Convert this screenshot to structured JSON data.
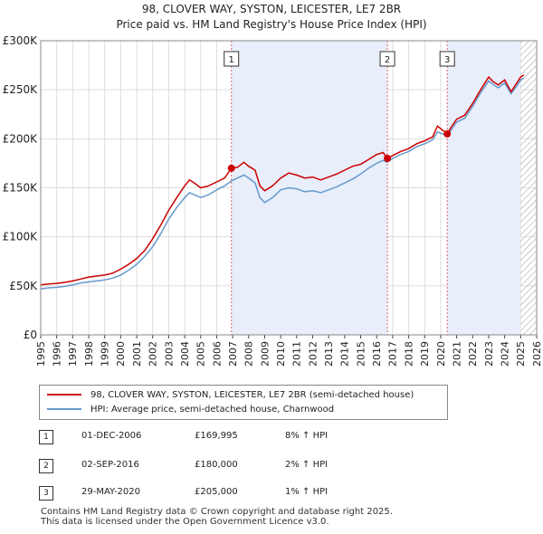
{
  "title_line1": "98, CLOVER WAY, SYSTON, LEICESTER, LE7 2BR",
  "title_line2": "Price paid vs. HM Land Registry's House Price Index (HPI)",
  "colors": {
    "property": "#cc0000",
    "hpi": "#6699cc",
    "shade": "#e8eefa",
    "grid": "#dddddd",
    "vline": "#dd6666"
  },
  "chart_data": {
    "type": "line",
    "title": "Price paid vs. HM Land Registry's House Price Index (HPI)",
    "xlim": [
      1995,
      2026
    ],
    "ylim": [
      0,
      300000
    ],
    "x_ticks": [
      "1995",
      "1996",
      "1997",
      "1998",
      "1999",
      "2000",
      "2001",
      "2002",
      "2003",
      "2004",
      "2005",
      "2006",
      "2007",
      "2008",
      "2009",
      "2010",
      "2011",
      "2012",
      "2013",
      "2014",
      "2015",
      "2016",
      "2017",
      "2018",
      "2019",
      "2020",
      "2021",
      "2022",
      "2023",
      "2024",
      "2025",
      "2026"
    ],
    "y_ticks": [
      {
        "value": 0,
        "label": "£0"
      },
      {
        "value": 50000,
        "label": "£50K"
      },
      {
        "value": 100000,
        "label": "£100K"
      },
      {
        "value": 150000,
        "label": "£150K"
      },
      {
        "value": 200000,
        "label": "£200K"
      },
      {
        "value": 250000,
        "label": "£250K"
      },
      {
        "value": 300000,
        "label": "£300K"
      }
    ],
    "shaded_ranges": [
      [
        2006.92,
        2016.67
      ],
      [
        2020.41,
        2025.0
      ]
    ],
    "hatched_range": [
      2025.0,
      2026.0
    ],
    "series": [
      {
        "name": "98, CLOVER WAY, SYSTON, LEICESTER, LE7 2BR (semi-detached house)",
        "color": "#cc0000",
        "points": [
          [
            1995.0,
            51000
          ],
          [
            1995.5,
            52000
          ],
          [
            1996.0,
            52500
          ],
          [
            1996.5,
            53500
          ],
          [
            1997.0,
            55000
          ],
          [
            1997.5,
            57000
          ],
          [
            1998.0,
            59000
          ],
          [
            1998.5,
            60000
          ],
          [
            1999.0,
            61000
          ],
          [
            1999.5,
            63000
          ],
          [
            2000.0,
            67000
          ],
          [
            2000.5,
            72000
          ],
          [
            2001.0,
            78000
          ],
          [
            2001.5,
            86000
          ],
          [
            2002.0,
            98000
          ],
          [
            2002.5,
            112000
          ],
          [
            2003.0,
            127000
          ],
          [
            2003.5,
            140000
          ],
          [
            2004.0,
            152000
          ],
          [
            2004.3,
            158000
          ],
          [
            2004.6,
            155000
          ],
          [
            2005.0,
            150000
          ],
          [
            2005.5,
            152000
          ],
          [
            2006.0,
            156000
          ],
          [
            2006.5,
            160000
          ],
          [
            2006.92,
            169995
          ],
          [
            2007.3,
            171000
          ],
          [
            2007.7,
            176000
          ],
          [
            2008.0,
            172000
          ],
          [
            2008.4,
            168000
          ],
          [
            2008.7,
            152000
          ],
          [
            2009.0,
            147000
          ],
          [
            2009.5,
            152000
          ],
          [
            2010.0,
            160000
          ],
          [
            2010.5,
            165000
          ],
          [
            2011.0,
            163000
          ],
          [
            2011.5,
            160000
          ],
          [
            2012.0,
            161000
          ],
          [
            2012.5,
            158000
          ],
          [
            2013.0,
            161000
          ],
          [
            2013.5,
            164000
          ],
          [
            2014.0,
            168000
          ],
          [
            2014.5,
            172000
          ],
          [
            2015.0,
            174000
          ],
          [
            2015.5,
            179000
          ],
          [
            2016.0,
            184000
          ],
          [
            2016.4,
            186000
          ],
          [
            2016.67,
            180000
          ],
          [
            2017.0,
            183000
          ],
          [
            2017.5,
            187000
          ],
          [
            2018.0,
            190000
          ],
          [
            2018.5,
            195000
          ],
          [
            2019.0,
            198000
          ],
          [
            2019.5,
            202000
          ],
          [
            2019.8,
            213000
          ],
          [
            2020.1,
            209000
          ],
          [
            2020.41,
            205000
          ],
          [
            2020.7,
            213000
          ],
          [
            2021.0,
            220000
          ],
          [
            2021.5,
            224000
          ],
          [
            2022.0,
            236000
          ],
          [
            2022.5,
            250000
          ],
          [
            2023.0,
            263000
          ],
          [
            2023.3,
            258000
          ],
          [
            2023.6,
            255000
          ],
          [
            2024.0,
            260000
          ],
          [
            2024.4,
            248000
          ],
          [
            2024.8,
            258000
          ],
          [
            2025.0,
            263000
          ],
          [
            2025.2,
            265000
          ]
        ]
      },
      {
        "name": "HPI: Average price, semi-detached house, Charnwood",
        "color": "#6699cc",
        "points": [
          [
            1995.0,
            47000
          ],
          [
            1995.5,
            48000
          ],
          [
            1996.0,
            48500
          ],
          [
            1996.5,
            49500
          ],
          [
            1997.0,
            51000
          ],
          [
            1997.5,
            53000
          ],
          [
            1998.0,
            54000
          ],
          [
            1998.5,
            55000
          ],
          [
            1999.0,
            56000
          ],
          [
            1999.5,
            58000
          ],
          [
            2000.0,
            61000
          ],
          [
            2000.5,
            66000
          ],
          [
            2001.0,
            72000
          ],
          [
            2001.5,
            80000
          ],
          [
            2002.0,
            90000
          ],
          [
            2002.5,
            103000
          ],
          [
            2003.0,
            118000
          ],
          [
            2003.5,
            130000
          ],
          [
            2004.0,
            140000
          ],
          [
            2004.3,
            145000
          ],
          [
            2004.6,
            143000
          ],
          [
            2005.0,
            140000
          ],
          [
            2005.5,
            143000
          ],
          [
            2006.0,
            148000
          ],
          [
            2006.5,
            152000
          ],
          [
            2006.92,
            157000
          ],
          [
            2007.3,
            160000
          ],
          [
            2007.7,
            163000
          ],
          [
            2008.0,
            160000
          ],
          [
            2008.4,
            155000
          ],
          [
            2008.7,
            140000
          ],
          [
            2009.0,
            135000
          ],
          [
            2009.5,
            140000
          ],
          [
            2010.0,
            148000
          ],
          [
            2010.5,
            150000
          ],
          [
            2011.0,
            149000
          ],
          [
            2011.5,
            146000
          ],
          [
            2012.0,
            147000
          ],
          [
            2012.5,
            145000
          ],
          [
            2013.0,
            148000
          ],
          [
            2013.5,
            151000
          ],
          [
            2014.0,
            155000
          ],
          [
            2014.5,
            159000
          ],
          [
            2015.0,
            164000
          ],
          [
            2015.5,
            170000
          ],
          [
            2016.0,
            175000
          ],
          [
            2016.4,
            178000
          ],
          [
            2016.67,
            176000
          ],
          [
            2017.0,
            180000
          ],
          [
            2017.5,
            184000
          ],
          [
            2018.0,
            187000
          ],
          [
            2018.5,
            192000
          ],
          [
            2019.0,
            195000
          ],
          [
            2019.5,
            199000
          ],
          [
            2019.8,
            207000
          ],
          [
            2020.1,
            205000
          ],
          [
            2020.41,
            203000
          ],
          [
            2020.7,
            210000
          ],
          [
            2021.0,
            217000
          ],
          [
            2021.5,
            221000
          ],
          [
            2022.0,
            233000
          ],
          [
            2022.5,
            247000
          ],
          [
            2023.0,
            259000
          ],
          [
            2023.3,
            255000
          ],
          [
            2023.6,
            252000
          ],
          [
            2024.0,
            257000
          ],
          [
            2024.4,
            246000
          ],
          [
            2024.8,
            255000
          ],
          [
            2025.0,
            260000
          ],
          [
            2025.2,
            262000
          ]
        ]
      }
    ],
    "sales": [
      {
        "id": "1",
        "x": 2006.92,
        "y": 169995
      },
      {
        "id": "2",
        "x": 2016.67,
        "y": 180000
      },
      {
        "id": "3",
        "x": 2020.41,
        "y": 205000
      }
    ]
  },
  "legend": {
    "property_label": "98, CLOVER WAY, SYSTON, LEICESTER, LE7 2BR (semi-detached house)",
    "hpi_label": "HPI: Average price, semi-detached house, Charnwood"
  },
  "transactions": [
    {
      "num": "1",
      "date": "01-DEC-2006",
      "price": "£169,995",
      "hpi": "8% ↑ HPI"
    },
    {
      "num": "2",
      "date": "02-SEP-2016",
      "price": "£180,000",
      "hpi": "2% ↑ HPI"
    },
    {
      "num": "3",
      "date": "29-MAY-2020",
      "price": "£205,000",
      "hpi": "1% ↑ HPI"
    }
  ],
  "footer_line1": "Contains HM Land Registry data © Crown copyright and database right 2025.",
  "footer_line2": "This data is licensed under the Open Government Licence v3.0."
}
